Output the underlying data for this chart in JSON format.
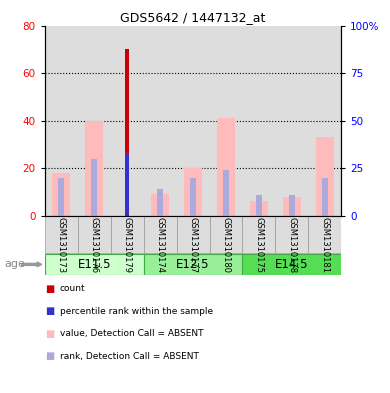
{
  "title": "GDS5642 / 1447132_at",
  "samples": [
    "GSM1310173",
    "GSM1310176",
    "GSM1310179",
    "GSM1310174",
    "GSM1310177",
    "GSM1310180",
    "GSM1310175",
    "GSM1310178",
    "GSM1310181"
  ],
  "age_groups": [
    {
      "label": "E11.5",
      "start": 0,
      "end": 3,
      "color": "#ccffcc"
    },
    {
      "label": "E12.5",
      "start": 3,
      "end": 6,
      "color": "#99ee99"
    },
    {
      "label": "E14.5",
      "start": 6,
      "end": 9,
      "color": "#55dd55"
    }
  ],
  "value_absent": [
    18,
    40,
    0,
    9,
    20,
    41,
    6,
    8,
    33
  ],
  "rank_absent": [
    20,
    30,
    0,
    14,
    20,
    24,
    11,
    11,
    20
  ],
  "count_red": [
    0,
    0,
    70,
    0,
    0,
    0,
    0,
    0,
    0
  ],
  "count_rank_blue": [
    0,
    0,
    33,
    0,
    0,
    0,
    0,
    0,
    0
  ],
  "left_ylim": [
    0,
    80
  ],
  "right_ylim": [
    0,
    100
  ],
  "left_yticks": [
    0,
    20,
    40,
    60,
    80
  ],
  "right_yticks": [
    0,
    25,
    50,
    75,
    100
  ],
  "right_yticklabels": [
    "0",
    "25",
    "50",
    "75",
    "100%"
  ],
  "color_count": "#cc0000",
  "color_rank_blue": "#3333cc",
  "color_value_absent": "#ffbbbb",
  "color_rank_absent": "#aaaadd",
  "age_label": "age",
  "bg_sample_color": "#dddddd",
  "pink_bar_width": 0.55,
  "blue_bar_width": 0.18,
  "red_bar_width": 0.12
}
